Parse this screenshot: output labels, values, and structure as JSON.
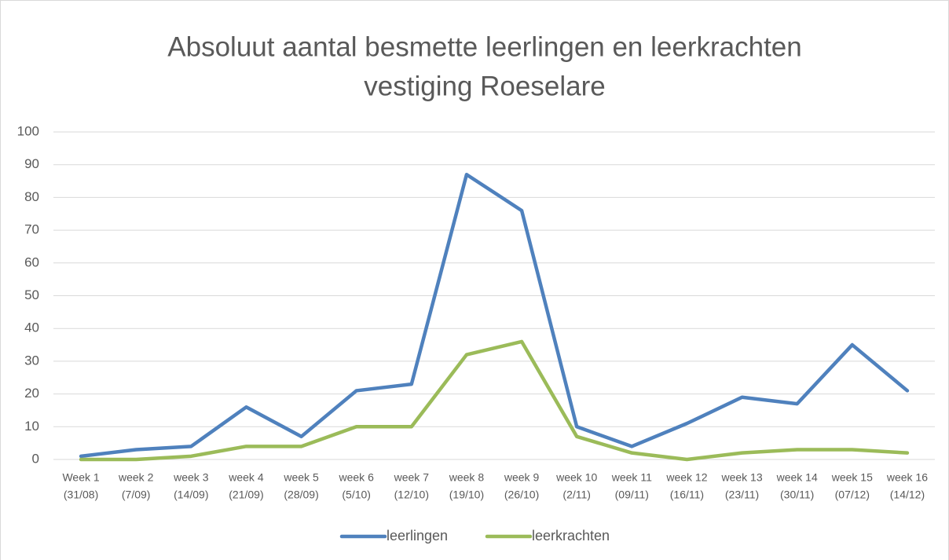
{
  "chart_data": {
    "type": "line",
    "title": [
      "Absoluut aantal besmette leerlingen en leerkrachten",
      "vestiging Roeselare"
    ],
    "categories": [
      [
        "Week 1",
        "(31/08)"
      ],
      [
        "week 2",
        "(7/09)"
      ],
      [
        "week 3",
        "(14/09)"
      ],
      [
        "week 4",
        "(21/09)"
      ],
      [
        "week 5",
        "(28/09)"
      ],
      [
        "week 6",
        "(5/10)"
      ],
      [
        "week 7",
        "(12/10)"
      ],
      [
        "week 8",
        "(19/10)"
      ],
      [
        "week 9",
        "(26/10)"
      ],
      [
        "week 10",
        "(2/11)"
      ],
      [
        "week 11",
        "(09/11)"
      ],
      [
        "week 12",
        "(16/11)"
      ],
      [
        "week 13",
        "(23/11)"
      ],
      [
        "week 14",
        "(30/11)"
      ],
      [
        "week 15",
        "(07/12)"
      ],
      [
        "week 16",
        "(14/12)"
      ]
    ],
    "series": [
      {
        "name": "leerlingen",
        "color": "#4f81bd",
        "values": [
          1,
          3,
          4,
          16,
          7,
          21,
          23,
          87,
          76,
          10,
          4,
          11,
          19,
          17,
          35,
          21
        ]
      },
      {
        "name": "leerkrachten",
        "color": "#9bbb59",
        "values": [
          0,
          0,
          1,
          4,
          4,
          10,
          10,
          32,
          36,
          7,
          2,
          0,
          2,
          3,
          3,
          2
        ]
      }
    ],
    "ylim": [
      0,
      100
    ],
    "yticks": [
      0,
      10,
      20,
      30,
      40,
      50,
      60,
      70,
      80,
      90,
      100
    ],
    "grid": true,
    "legend": "bottom"
  }
}
